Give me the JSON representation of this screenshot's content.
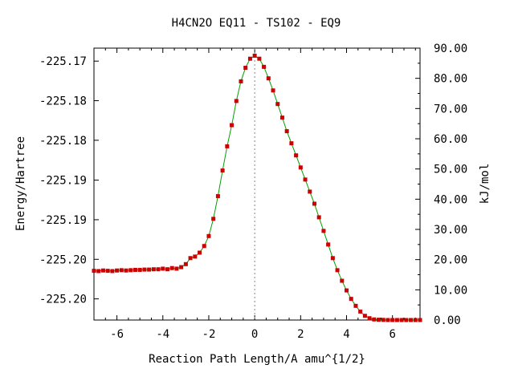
{
  "chart_data": {
    "type": "line",
    "title": "H4CN2O   EQ11 - TS102 - EQ9",
    "xlabel": "Reaction Path Length/A amu^{1/2}",
    "ylabel": "Energy/Hartree",
    "y2label": "kJ/mol",
    "xlim": [
      -7.0,
      7.2
    ],
    "ylim": [
      0.0,
      90.0
    ],
    "x_ticks": [
      "-6",
      "-4",
      "-2",
      "0",
      "2",
      "4",
      "6"
    ],
    "x_tick_values": [
      -6,
      -4,
      -2,
      0,
      2,
      4,
      6
    ],
    "y_left_ticks": [
      "-225.20",
      "-225.20",
      "-225.19",
      "-225.19",
      "-225.18",
      "-225.18",
      "-225.17"
    ],
    "y_left_tick_kj": [
      7.0,
      20.1,
      33.2,
      46.3,
      59.5,
      72.6,
      85.7
    ],
    "y_right_ticks": [
      "0.00",
      "10.00",
      "20.00",
      "30.00",
      "40.00",
      "50.00",
      "60.00",
      "70.00",
      "80.00",
      "90.00"
    ],
    "y_right_tick_values": [
      0,
      10,
      20,
      30,
      40,
      50,
      60,
      70,
      80,
      90
    ],
    "ts_marker_x": 0.0,
    "grid": false,
    "colors": {
      "line": "#00a000",
      "points": "#cc0000",
      "ts_marker": "#888888",
      "axis": "#000000"
    },
    "series": [
      {
        "x": [
          -7.0,
          -6.8,
          -6.6,
          -6.4,
          -6.2,
          -6.0,
          -5.8,
          -5.6,
          -5.4,
          -5.2,
          -5.0,
          -4.8,
          -4.6,
          -4.4,
          -4.2,
          -4.0,
          -3.8,
          -3.6,
          -3.4,
          -3.2,
          -3.0,
          -2.8,
          -2.6,
          -2.4,
          -2.2,
          -2.0,
          -1.8,
          -1.6,
          -1.4,
          -1.2,
          -1.0,
          -0.8,
          -0.6,
          -0.4,
          -0.2,
          0.0,
          0.2,
          0.4,
          0.6,
          0.8,
          1.0,
          1.2,
          1.4,
          1.6,
          1.8,
          2.0,
          2.2,
          2.4,
          2.6,
          2.8,
          3.0,
          3.2,
          3.4,
          3.6,
          3.8,
          4.0,
          4.2,
          4.4,
          4.6,
          4.8,
          5.0,
          5.2,
          5.4,
          5.6,
          5.8,
          6.0,
          6.2,
          6.4,
          6.6,
          6.8,
          7.0,
          7.2
        ],
        "values": [
          16.3,
          16.2,
          16.4,
          16.3,
          16.2,
          16.4,
          16.5,
          16.4,
          16.5,
          16.6,
          16.6,
          16.7,
          16.7,
          16.8,
          16.8,
          17.0,
          16.8,
          17.2,
          17.0,
          17.5,
          18.5,
          20.5,
          21.0,
          22.3,
          24.5,
          27.8,
          33.5,
          41.0,
          49.5,
          57.5,
          64.5,
          72.5,
          79.0,
          83.5,
          86.5,
          87.5,
          86.5,
          83.8,
          80.0,
          76.0,
          71.5,
          67.0,
          62.5,
          58.5,
          54.5,
          50.5,
          46.5,
          42.5,
          38.5,
          34.0,
          29.5,
          25.0,
          20.5,
          16.5,
          13.0,
          9.8,
          7.0,
          4.7,
          2.8,
          1.4,
          0.6,
          0.2,
          0.1,
          0.05,
          0.0,
          0.0,
          0.0,
          0.0,
          0.0,
          0.0,
          0.0,
          0.0
        ]
      }
    ]
  }
}
